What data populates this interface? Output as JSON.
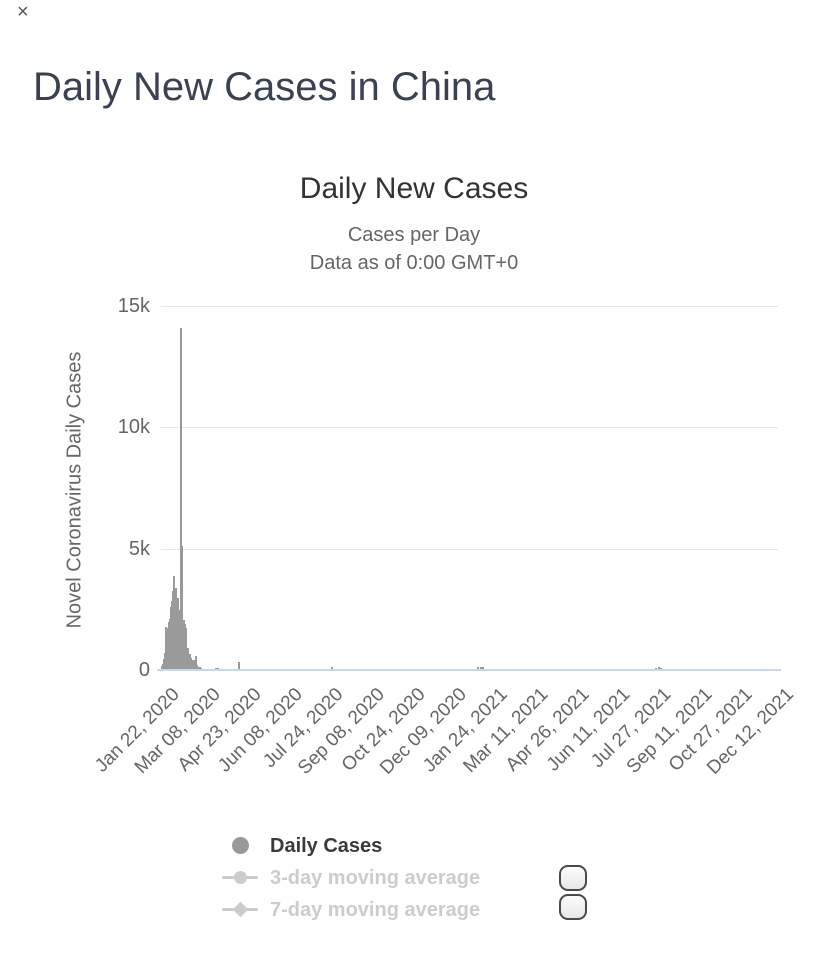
{
  "page": {
    "close_label": "×",
    "heading": "Daily New Cases in China"
  },
  "chart": {
    "title": "Daily New Cases",
    "subtitle_line1": "Cases per Day",
    "subtitle_line2": "Data as of 0:00 GMT+0",
    "legend": [
      {
        "label": "Daily Cases",
        "marker": "circle",
        "state": "active"
      },
      {
        "label": "3-day moving average",
        "marker": "line-circle",
        "state": "disabled"
      },
      {
        "label": "7-day moving average",
        "marker": "line-diamond",
        "state": "disabled"
      }
    ],
    "colors": {
      "heading": "#3a4151",
      "bars": "#9a9a9a",
      "gridline": "#e6e6e6",
      "axis_line": "#ccd6eb",
      "tick_text": "#666666",
      "legend_active_text": "#3a3a3a",
      "legend_disabled": "#cccccc"
    }
  },
  "chart_data": {
    "type": "bar",
    "title": "Daily New Cases",
    "subtitle": [
      "Cases per Day",
      "Data as of 0:00 GMT+0"
    ],
    "xlabel": "",
    "ylabel": "Novel Coronavirus Daily Cases",
    "ylim": [
      0,
      15000
    ],
    "y_tick_values": [
      0,
      5000,
      10000,
      15000
    ],
    "y_tick_labels": [
      "0",
      "5k",
      "10k",
      "15k"
    ],
    "x_start_date": "2020-01-22",
    "x_total_days": 690,
    "x_tick_days": [
      0,
      46,
      92,
      138,
      184,
      230,
      276,
      322,
      368,
      414,
      460,
      506,
      552,
      598,
      644,
      690
    ],
    "x_tick_labels": [
      "Jan 22, 2020",
      "Mar 08, 2020",
      "Apr 23, 2020",
      "Jun 08, 2020",
      "Jul 24, 2020",
      "Sep 08, 2020",
      "Oct 24, 2020",
      "Dec 09, 2020",
      "Jan 24, 2021",
      "Mar 11, 2021",
      "Apr 26, 2021",
      "Jun 11, 2021",
      "Jul 27, 2021",
      "Sep 11, 2021",
      "Oct 27, 2021",
      "Dec 12, 2021"
    ],
    "grid": true,
    "legend_position": "bottom",
    "peak": {
      "date": "2020-02-12",
      "value": 14110
    },
    "series": [
      {
        "name": "Daily Cases",
        "points": [
          [
            "2020-01-22",
            150
          ],
          [
            "2020-01-23",
            260
          ],
          [
            "2020-01-24",
            440
          ],
          [
            "2020-01-25",
            690
          ],
          [
            "2020-01-26",
            780
          ],
          [
            "2020-01-27",
            1770
          ],
          [
            "2020-01-28",
            1460
          ],
          [
            "2020-01-29",
            1740
          ],
          [
            "2020-01-30",
            1980
          ],
          [
            "2020-01-31",
            2100
          ],
          [
            "2020-02-01",
            2590
          ],
          [
            "2020-02-02",
            2830
          ],
          [
            "2020-02-03",
            3240
          ],
          [
            "2020-02-04",
            3890
          ],
          [
            "2020-02-05",
            3700
          ],
          [
            "2020-02-06",
            3140
          ],
          [
            "2020-02-07",
            3390
          ],
          [
            "2020-02-08",
            2650
          ],
          [
            "2020-02-09",
            2970
          ],
          [
            "2020-02-10",
            2470
          ],
          [
            "2020-02-11",
            2020
          ],
          [
            "2020-02-12",
            14110
          ],
          [
            "2020-02-13",
            5090
          ],
          [
            "2020-02-14",
            2640
          ],
          [
            "2020-02-15",
            2010
          ],
          [
            "2020-02-16",
            2050
          ],
          [
            "2020-02-17",
            1890
          ],
          [
            "2020-02-18",
            1750
          ],
          [
            "2020-02-19",
            820
          ],
          [
            "2020-02-20",
            890
          ],
          [
            "2020-02-21",
            400
          ],
          [
            "2020-02-22",
            650
          ],
          [
            "2020-02-23",
            410
          ],
          [
            "2020-02-24",
            510
          ],
          [
            "2020-02-25",
            410
          ],
          [
            "2020-02-26",
            430
          ],
          [
            "2020-02-27",
            330
          ],
          [
            "2020-02-28",
            430
          ],
          [
            "2020-02-29",
            570
          ],
          [
            "2020-03-01",
            200
          ],
          [
            "2020-03-02",
            130
          ],
          [
            "2020-03-03",
            120
          ],
          [
            "2020-03-04",
            140
          ],
          [
            "2020-03-05",
            140
          ],
          [
            "2020-03-06",
            100
          ],
          [
            "2020-03-07",
            45
          ],
          [
            "2020-03-08",
            40
          ],
          [
            "2020-03-10",
            25
          ],
          [
            "2020-03-12",
            10
          ],
          [
            "2020-03-15",
            16
          ],
          [
            "2020-03-18",
            34
          ],
          [
            "2020-03-20",
            40
          ],
          [
            "2020-03-23",
            78
          ],
          [
            "2020-03-25",
            65
          ],
          [
            "2020-03-28",
            45
          ],
          [
            "2020-03-31",
            36
          ],
          [
            "2020-04-17",
            350
          ],
          [
            "2020-07-31",
            120
          ],
          [
            "2021-01-11",
            110
          ],
          [
            "2021-01-14",
            140
          ],
          [
            "2021-01-17",
            110
          ],
          [
            "2021-07-30",
            100
          ],
          [
            "2021-08-02",
            110
          ],
          [
            "2021-08-05",
            95
          ],
          [
            "2021-12-06",
            60
          ]
        ]
      }
    ],
    "disabled_series": [
      "3-day moving average",
      "7-day moving average"
    ]
  }
}
